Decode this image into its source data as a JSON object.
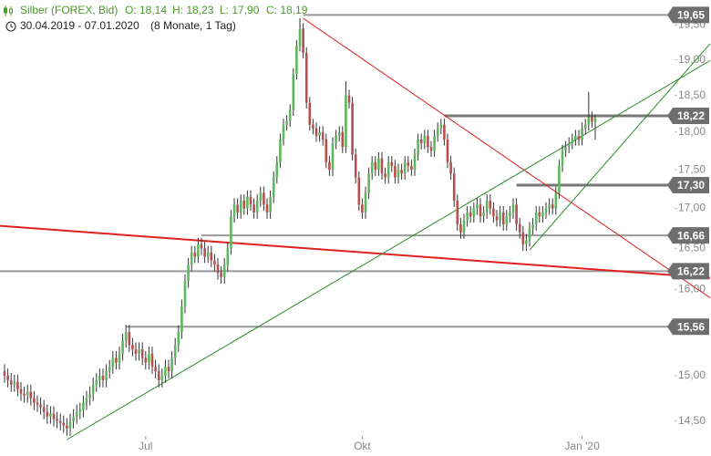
{
  "chart_data": {
    "type": "candlestick",
    "title": "Silber (FOREX, Bid)",
    "quote": [
      "O: 18,14",
      "H: 18,23",
      "L: 17,90",
      "C: 18,19"
    ],
    "period": "30.04.2019 - 07.01.2020",
    "period_note": "(8 Monate, 1 Tag)",
    "log_scale": true,
    "up_color": "#5cb85c",
    "down_color": "#b4504f",
    "wick_color": "#333333",
    "ylim": [
      14.3,
      19.87
    ],
    "yticks": [
      {
        "value": 14.5,
        "label": "14,50"
      },
      {
        "value": 15,
        "label": "15,00"
      },
      {
        "value": 16,
        "label": "16,00"
      },
      {
        "value": 16.5,
        "label": "16,50"
      },
      {
        "value": 17,
        "label": "17,00"
      },
      {
        "value": 17.5,
        "label": "17,50"
      },
      {
        "value": 18,
        "label": "18,00"
      },
      {
        "value": 18.5,
        "label": "18,50"
      },
      {
        "value": 19,
        "label": "19,00"
      },
      {
        "value": 19.5,
        "label": "19,50"
      }
    ],
    "categories": [
      null,
      null,
      null,
      null,
      null,
      null,
      null,
      null,
      null,
      null,
      null,
      null,
      null,
      null,
      null,
      null,
      null,
      null,
      null,
      null,
      null,
      null,
      null,
      null,
      null,
      null,
      null,
      null,
      null,
      null,
      null,
      null,
      null,
      null,
      null,
      null,
      null,
      null,
      null,
      null,
      null,
      null,
      null,
      "Jul",
      null,
      null,
      null,
      null,
      null,
      null,
      null,
      null,
      null,
      null,
      null,
      null,
      null,
      null,
      null,
      null,
      null,
      null,
      null,
      null,
      null,
      null,
      null,
      null,
      null,
      null,
      null,
      null,
      null,
      null,
      null,
      null,
      null,
      null,
      null,
      null,
      null,
      null,
      null,
      null,
      null,
      null,
      null,
      null,
      null,
      null,
      null,
      null,
      null,
      null,
      null,
      null,
      null,
      null,
      null,
      null,
      null,
      null,
      null,
      null,
      null,
      null,
      null,
      null,
      null,
      "Okt",
      null,
      null,
      null,
      null,
      null,
      null,
      null,
      null,
      null,
      null,
      null,
      null,
      null,
      null,
      null,
      null,
      null,
      null,
      null,
      null,
      null,
      null,
      null,
      null,
      null,
      null,
      null,
      null,
      null,
      null,
      null,
      null,
      null,
      null,
      null,
      null,
      null,
      null,
      null,
      null,
      null,
      null,
      null,
      null,
      null,
      null,
      null,
      null,
      null,
      null,
      null,
      null,
      null,
      null,
      null,
      null,
      null,
      null,
      null,
      null,
      null,
      null,
      null,
      null,
      null,
      null,
      "Jan '20",
      null,
      null,
      null,
      null
    ],
    "open": [
      15.05,
      15.0,
      14.95,
      14.9,
      14.93,
      14.85,
      14.8,
      14.78,
      14.82,
      14.75,
      14.7,
      14.68,
      14.65,
      14.6,
      14.55,
      14.58,
      14.52,
      14.5,
      14.48,
      14.45,
      14.42,
      14.5,
      14.55,
      14.6,
      14.62,
      14.7,
      14.75,
      14.8,
      14.9,
      14.95,
      15.0,
      14.95,
      15.05,
      15.1,
      15.2,
      15.15,
      15.25,
      15.4,
      15.5,
      15.35,
      15.3,
      15.25,
      15.3,
      15.2,
      15.15,
      15.25,
      15.1,
      15.05,
      14.95,
      15.0,
      15.1,
      15.05,
      15.2,
      15.35,
      15.5,
      15.8,
      16.1,
      16.3,
      16.45,
      16.4,
      16.55,
      16.5,
      16.4,
      16.45,
      16.35,
      16.3,
      16.2,
      16.15,
      16.3,
      16.5,
      16.9,
      17.05,
      16.95,
      17.1,
      17.0,
      17.15,
      17.05,
      16.95,
      17.1,
      17.2,
      17.05,
      16.95,
      17.15,
      17.4,
      17.6,
      17.9,
      18.1,
      18.15,
      18.3,
      18.8,
      19.2,
      19.45,
      19.1,
      18.4,
      18.1,
      18.05,
      17.95,
      18.0,
      17.9,
      17.6,
      17.5,
      17.85,
      17.95,
      18.0,
      17.8,
      18.5,
      18.4,
      17.7,
      17.4,
      17.05,
      16.95,
      17.2,
      17.45,
      17.6,
      17.5,
      17.65,
      17.45,
      17.4,
      17.6,
      17.55,
      17.4,
      17.5,
      17.45,
      17.6,
      17.55,
      17.5,
      17.7,
      17.9,
      17.85,
      17.95,
      17.8,
      17.75,
      17.95,
      18.05,
      18.1,
      17.9,
      17.6,
      17.45,
      17.1,
      16.8,
      16.7,
      16.85,
      16.95,
      16.9,
      17.0,
      17.05,
      16.9,
      16.95,
      17.1,
      17.0,
      16.9,
      16.85,
      16.95,
      16.8,
      16.9,
      16.95,
      17.05,
      16.8,
      16.7,
      16.55,
      16.6,
      16.75,
      16.8,
      16.95,
      16.9,
      16.95,
      17.0,
      17.05,
      17.0,
      17.2,
      17.55,
      17.75,
      17.8,
      17.85,
      17.9,
      17.95,
      17.9,
      18.05,
      18.1,
      18.2,
      18.14
    ],
    "high": [
      15.13,
      15.08,
      15.03,
      15.01,
      15.01,
      14.93,
      14.88,
      14.9,
      14.9,
      14.83,
      14.78,
      14.76,
      14.73,
      14.68,
      14.66,
      14.66,
      14.6,
      14.58,
      14.56,
      14.53,
      14.58,
      14.63,
      14.68,
      14.7,
      14.78,
      14.83,
      14.88,
      14.98,
      15.03,
      15.08,
      15.08,
      15.13,
      15.18,
      15.28,
      15.28,
      15.33,
      15.48,
      15.58,
      15.58,
      15.43,
      15.38,
      15.38,
      15.38,
      15.28,
      15.33,
      15.33,
      15.18,
      15.13,
      15.08,
      15.18,
      15.18,
      15.28,
      15.43,
      15.58,
      15.88,
      16.18,
      16.38,
      16.53,
      16.53,
      16.63,
      16.63,
      16.58,
      16.53,
      16.53,
      16.43,
      16.38,
      16.28,
      16.38,
      16.58,
      16.98,
      17.13,
      17.13,
      17.18,
      17.18,
      17.23,
      17.23,
      17.13,
      17.18,
      17.28,
      17.28,
      17.13,
      17.23,
      17.48,
      17.68,
      17.98,
      18.18,
      18.23,
      18.38,
      18.88,
      19.28,
      19.6,
      19.53,
      19.18,
      18.48,
      18.18,
      18.13,
      18.08,
      18.08,
      17.98,
      17.68,
      17.93,
      18.03,
      18.08,
      18.08,
      18.7,
      18.58,
      18.48,
      17.78,
      17.48,
      17.13,
      17.28,
      17.53,
      17.68,
      17.68,
      17.73,
      17.73,
      17.53,
      17.68,
      17.68,
      17.63,
      17.58,
      17.58,
      17.68,
      17.68,
      17.63,
      17.78,
      17.98,
      17.98,
      18.03,
      18.03,
      17.88,
      18.03,
      18.13,
      18.18,
      18.18,
      17.98,
      17.68,
      17.53,
      17.18,
      16.88,
      16.93,
      17.03,
      17.03,
      17.08,
      17.13,
      17.13,
      17.03,
      17.18,
      17.18,
      17.08,
      16.98,
      17.03,
      17.03,
      16.98,
      17.03,
      17.13,
      17.13,
      16.88,
      16.78,
      16.68,
      16.83,
      16.88,
      17.03,
      17.03,
      17.03,
      17.08,
      17.13,
      17.13,
      17.28,
      17.63,
      17.83,
      17.88,
      17.93,
      17.98,
      18.03,
      18.03,
      18.13,
      18.18,
      18.55,
      18.28,
      18.23
    ],
    "low": [
      14.92,
      14.87,
      14.82,
      14.82,
      14.77,
      14.72,
      14.7,
      14.7,
      14.67,
      14.62,
      14.6,
      14.57,
      14.52,
      14.47,
      14.47,
      14.44,
      14.42,
      14.4,
      14.37,
      14.34,
      14.34,
      14.42,
      14.47,
      14.52,
      14.54,
      14.62,
      14.67,
      14.72,
      14.82,
      14.87,
      14.87,
      14.87,
      14.97,
      15.02,
      15.07,
      15.07,
      15.17,
      15.32,
      15.27,
      15.22,
      15.17,
      15.17,
      15.12,
      15.07,
      15.07,
      15.02,
      14.97,
      14.87,
      14.87,
      14.92,
      14.97,
      14.97,
      15.12,
      15.27,
      15.42,
      15.72,
      16.02,
      16.22,
      16.32,
      16.32,
      16.42,
      16.32,
      16.32,
      16.27,
      16.22,
      16.12,
      16.07,
      16.07,
      16.22,
      16.42,
      16.82,
      16.87,
      16.87,
      16.92,
      16.92,
      16.97,
      16.87,
      16.87,
      17.02,
      16.97,
      16.87,
      16.87,
      17.07,
      17.32,
      17.52,
      17.82,
      18.02,
      18.07,
      18.22,
      18.72,
      19.12,
      19.02,
      18.32,
      18.02,
      17.97,
      17.87,
      17.87,
      17.82,
      17.52,
      17.42,
      17.42,
      17.77,
      17.87,
      17.72,
      17.72,
      18.32,
      17.62,
      17.32,
      16.97,
      16.87,
      16.87,
      17.12,
      17.37,
      17.42,
      17.42,
      17.37,
      17.32,
      17.32,
      17.47,
      17.32,
      17.32,
      17.37,
      17.37,
      17.47,
      17.42,
      17.42,
      17.62,
      17.77,
      17.77,
      17.72,
      17.67,
      17.67,
      17.87,
      17.97,
      17.82,
      17.52,
      17.37,
      17.02,
      16.72,
      16.62,
      16.62,
      16.77,
      16.82,
      16.82,
      16.92,
      16.82,
      16.82,
      16.87,
      16.92,
      16.82,
      16.77,
      16.77,
      16.72,
      16.72,
      16.82,
      16.87,
      16.72,
      16.62,
      16.47,
      16.47,
      16.52,
      16.67,
      16.72,
      16.82,
      16.82,
      16.87,
      16.92,
      16.92,
      16.92,
      17.12,
      17.47,
      17.67,
      17.72,
      17.77,
      17.82,
      17.82,
      17.82,
      17.97,
      18.02,
      18.06,
      17.9
    ],
    "close": [
      15.0,
      14.95,
      14.9,
      14.93,
      14.85,
      14.8,
      14.78,
      14.82,
      14.75,
      14.7,
      14.68,
      14.65,
      14.6,
      14.55,
      14.58,
      14.52,
      14.5,
      14.48,
      14.45,
      14.42,
      14.5,
      14.55,
      14.6,
      14.62,
      14.7,
      14.75,
      14.8,
      14.9,
      14.95,
      15.0,
      14.95,
      15.05,
      15.1,
      15.2,
      15.15,
      15.25,
      15.4,
      15.5,
      15.35,
      15.3,
      15.25,
      15.3,
      15.2,
      15.15,
      15.25,
      15.1,
      15.05,
      14.95,
      15.0,
      15.1,
      15.05,
      15.2,
      15.35,
      15.5,
      15.8,
      16.1,
      16.3,
      16.45,
      16.4,
      16.55,
      16.5,
      16.4,
      16.45,
      16.35,
      16.3,
      16.2,
      16.15,
      16.3,
      16.5,
      16.9,
      17.05,
      16.95,
      17.1,
      17.0,
      17.15,
      17.05,
      16.95,
      17.1,
      17.2,
      17.05,
      16.95,
      17.15,
      17.4,
      17.6,
      17.9,
      18.1,
      18.15,
      18.3,
      18.8,
      19.2,
      19.45,
      19.1,
      18.4,
      18.1,
      18.05,
      17.95,
      18.0,
      17.9,
      17.6,
      17.5,
      17.85,
      17.95,
      18.0,
      17.8,
      18.5,
      18.4,
      17.7,
      17.4,
      17.05,
      16.95,
      17.2,
      17.45,
      17.6,
      17.5,
      17.65,
      17.45,
      17.4,
      17.6,
      17.55,
      17.4,
      17.5,
      17.45,
      17.6,
      17.55,
      17.5,
      17.7,
      17.9,
      17.85,
      17.95,
      17.8,
      17.75,
      17.95,
      18.05,
      18.1,
      17.9,
      17.6,
      17.45,
      17.1,
      16.8,
      16.7,
      16.85,
      16.95,
      16.9,
      17.0,
      17.05,
      16.9,
      16.95,
      17.1,
      17.0,
      16.9,
      16.85,
      16.95,
      16.8,
      16.9,
      16.95,
      17.05,
      16.8,
      16.7,
      16.55,
      16.6,
      16.75,
      16.8,
      16.95,
      16.9,
      16.95,
      17.0,
      17.05,
      17.0,
      17.2,
      17.55,
      17.75,
      17.8,
      17.85,
      17.9,
      17.95,
      17.9,
      18.05,
      18.1,
      18.2,
      18.14,
      18.19
    ],
    "levels": [
      {
        "value": 19.65,
        "label": "19,65",
        "from": 91,
        "bold": false
      },
      {
        "value": 18.22,
        "label": "18,22",
        "from": 134,
        "bold": true
      },
      {
        "value": 17.3,
        "label": "17,30",
        "from": 156,
        "bold": true
      },
      {
        "value": 16.66,
        "label": "16,66",
        "from": 60,
        "bold": false
      },
      {
        "value": 16.22,
        "label": "16,22",
        "from": -1.4,
        "bold": false
      },
      {
        "value": 15.56,
        "label": "15,56",
        "from": 37,
        "bold": false
      }
    ],
    "trendlines": [
      {
        "color": "#e02020",
        "width": 1,
        "points": [
          [
            91,
            19.6
          ],
          [
            215,
            15.9
          ]
        ]
      },
      {
        "color": "#e02020",
        "width": 2,
        "points": [
          [
            -1.4,
            16.78
          ],
          [
            215,
            16.14
          ]
        ]
      },
      {
        "color": "#2a8a2a",
        "width": 1,
        "points": [
          [
            19,
            14.3
          ],
          [
            215,
            18.99
          ]
        ]
      },
      {
        "color": "#2a8a2a",
        "width": 1,
        "points": [
          [
            160,
            16.48
          ],
          [
            215,
            19.23
          ]
        ]
      }
    ]
  }
}
